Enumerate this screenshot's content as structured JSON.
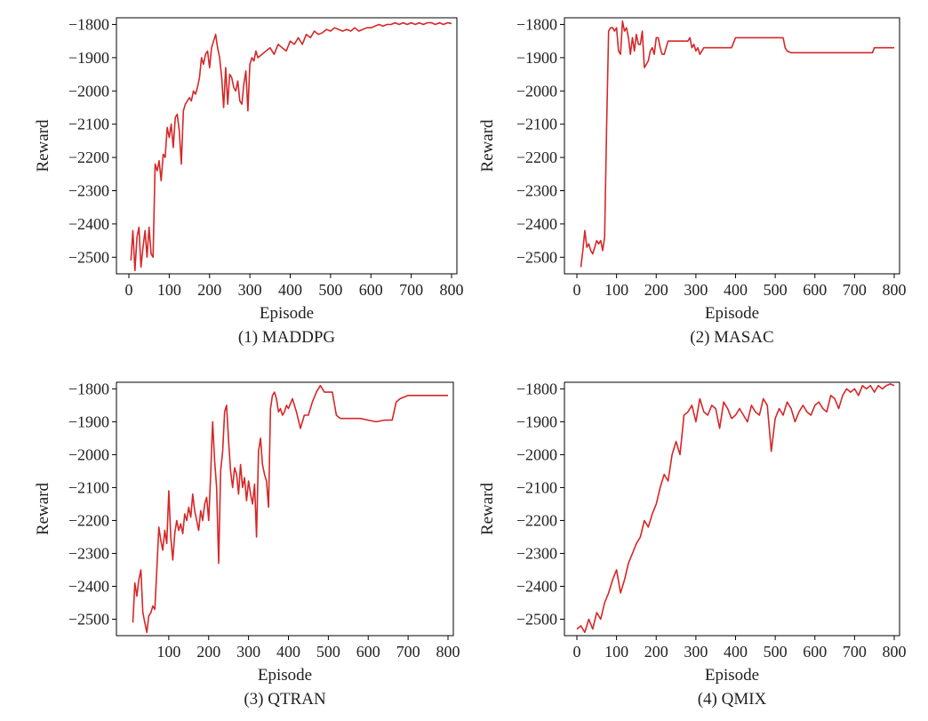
{
  "figure": {
    "line_color": "#d62728"
  },
  "chart_data": [
    {
      "type": "line",
      "caption": "(1) MADDPG",
      "xlabel": "Episode",
      "ylabel": "Reward",
      "xlim": [
        0,
        800
      ],
      "ylim": [
        -2550,
        -1780
      ],
      "xticks": [
        0,
        100,
        200,
        300,
        400,
        500,
        600,
        700,
        800
      ],
      "yticks": [
        -1800,
        -1900,
        -2000,
        -2100,
        -2200,
        -2300,
        -2400,
        -2500
      ],
      "grid": false,
      "series": [
        {
          "x": [
            5,
            10,
            15,
            20,
            25,
            30,
            35,
            40,
            45,
            50,
            55,
            60,
            65,
            70,
            75,
            80,
            85,
            90,
            95,
            100,
            105,
            110,
            115,
            120,
            125,
            130,
            135,
            140,
            145,
            150,
            155,
            160,
            165,
            170,
            175,
            180,
            185,
            190,
            195,
            200,
            205,
            210,
            215,
            220,
            225,
            230,
            235,
            240,
            245,
            250,
            255,
            260,
            265,
            270,
            275,
            280,
            285,
            290,
            295,
            300,
            305,
            310,
            315,
            320,
            330,
            340,
            350,
            360,
            370,
            380,
            390,
            400,
            410,
            420,
            430,
            440,
            450,
            460,
            470,
            480,
            490,
            500,
            510,
            520,
            530,
            540,
            550,
            560,
            570,
            580,
            590,
            600,
            610,
            620,
            630,
            640,
            650,
            660,
            670,
            680,
            690,
            700,
            710,
            720,
            730,
            740,
            750,
            760,
            770,
            780,
            790,
            800
          ],
          "y": [
            -2510,
            -2420,
            -2540,
            -2440,
            -2410,
            -2530,
            -2470,
            -2420,
            -2500,
            -2410,
            -2490,
            -2500,
            -2220,
            -2240,
            -2210,
            -2270,
            -2190,
            -2200,
            -2110,
            -2140,
            -2100,
            -2170,
            -2080,
            -2070,
            -2120,
            -2220,
            -2060,
            -2040,
            -2030,
            -2020,
            -2030,
            -2000,
            -2010,
            -1990,
            -1960,
            -1900,
            -1920,
            -1890,
            -1880,
            -1930,
            -1870,
            -1850,
            -1830,
            -1870,
            -1900,
            -1960,
            -2050,
            -1930,
            -2040,
            -1950,
            -1960,
            -1990,
            -2000,
            -1970,
            -2030,
            -2040,
            -1980,
            -1940,
            -2060,
            -1920,
            -1900,
            -1910,
            -1880,
            -1900,
            -1890,
            -1880,
            -1870,
            -1890,
            -1860,
            -1870,
            -1880,
            -1850,
            -1860,
            -1840,
            -1860,
            -1830,
            -1840,
            -1820,
            -1830,
            -1825,
            -1815,
            -1820,
            -1810,
            -1815,
            -1820,
            -1815,
            -1820,
            -1810,
            -1820,
            -1815,
            -1810,
            -1810,
            -1805,
            -1800,
            -1805,
            -1800,
            -1800,
            -1795,
            -1800,
            -1795,
            -1800,
            -1795,
            -1800,
            -1795,
            -1800,
            -1795,
            -1795,
            -1800,
            -1795,
            -1800,
            -1795,
            -1797
          ]
        }
      ]
    },
    {
      "type": "line",
      "caption": "(2) MASAC",
      "xlabel": "Episode",
      "ylabel": "Reward",
      "xlim": [
        0,
        800
      ],
      "ylim": [
        -2550,
        -1780
      ],
      "xticks": [
        0,
        100,
        200,
        300,
        400,
        500,
        600,
        700,
        800
      ],
      "yticks": [
        -1800,
        -1900,
        -2000,
        -2100,
        -2200,
        -2300,
        -2400,
        -2500
      ],
      "grid": false,
      "series": [
        {
          "x": [
            10,
            15,
            20,
            25,
            30,
            35,
            40,
            45,
            50,
            55,
            60,
            65,
            70,
            75,
            80,
            85,
            90,
            95,
            100,
            105,
            110,
            115,
            120,
            125,
            130,
            135,
            140,
            145,
            150,
            155,
            160,
            165,
            170,
            175,
            180,
            185,
            190,
            195,
            200,
            205,
            210,
            215,
            220,
            230,
            240,
            250,
            260,
            270,
            280,
            285,
            290,
            295,
            300,
            305,
            310,
            320,
            330,
            340,
            350,
            360,
            370,
            380,
            390,
            400,
            410,
            450,
            500,
            520,
            525,
            530,
            540,
            560,
            600,
            650,
            700,
            745,
            750,
            800
          ],
          "y": [
            -2530,
            -2480,
            -2420,
            -2470,
            -2460,
            -2480,
            -2490,
            -2470,
            -2450,
            -2460,
            -2450,
            -2480,
            -2440,
            -2100,
            -1820,
            -1810,
            -1810,
            -1820,
            -1810,
            -1880,
            -1890,
            -1790,
            -1820,
            -1810,
            -1840,
            -1890,
            -1840,
            -1880,
            -1830,
            -1860,
            -1860,
            -1820,
            -1930,
            -1920,
            -1910,
            -1880,
            -1870,
            -1890,
            -1840,
            -1840,
            -1870,
            -1890,
            -1890,
            -1850,
            -1850,
            -1850,
            -1850,
            -1850,
            -1850,
            -1840,
            -1870,
            -1860,
            -1880,
            -1870,
            -1890,
            -1870,
            -1870,
            -1870,
            -1870,
            -1870,
            -1870,
            -1870,
            -1870,
            -1840,
            -1840,
            -1840,
            -1840,
            -1840,
            -1870,
            -1880,
            -1885,
            -1885,
            -1885,
            -1885,
            -1885,
            -1885,
            -1870,
            -1870
          ]
        }
      ]
    },
    {
      "type": "line",
      "caption": "(3) QTRAN",
      "xlabel": "Episode",
      "ylabel": "Reward",
      "xlim": [
        0,
        800
      ],
      "ylim": [
        -2550,
        -1780
      ],
      "xticks": [
        100,
        200,
        300,
        400,
        500,
        600,
        700,
        800
      ],
      "yticks": [
        -1800,
        -1900,
        -2000,
        -2100,
        -2200,
        -2300,
        -2400,
        -2500
      ],
      "grid": false,
      "series": [
        {
          "x": [
            10,
            15,
            20,
            25,
            30,
            35,
            40,
            45,
            50,
            55,
            60,
            65,
            70,
            75,
            80,
            85,
            90,
            95,
            100,
            105,
            110,
            115,
            120,
            125,
            130,
            135,
            140,
            145,
            150,
            155,
            160,
            165,
            170,
            175,
            180,
            185,
            190,
            195,
            200,
            205,
            210,
            215,
            220,
            225,
            230,
            235,
            240,
            245,
            250,
            255,
            260,
            265,
            270,
            275,
            280,
            285,
            290,
            295,
            300,
            305,
            310,
            315,
            320,
            325,
            330,
            335,
            340,
            345,
            350,
            355,
            360,
            365,
            370,
            375,
            380,
            385,
            390,
            395,
            400,
            410,
            420,
            430,
            440,
            450,
            460,
            470,
            480,
            490,
            500,
            510,
            520,
            530,
            540,
            560,
            580,
            600,
            620,
            640,
            660,
            670,
            680,
            700,
            720,
            740,
            760,
            780,
            800
          ],
          "y": [
            -2510,
            -2390,
            -2430,
            -2380,
            -2350,
            -2480,
            -2510,
            -2540,
            -2490,
            -2480,
            -2460,
            -2470,
            -2350,
            -2220,
            -2260,
            -2290,
            -2230,
            -2270,
            -2110,
            -2250,
            -2320,
            -2240,
            -2200,
            -2230,
            -2210,
            -2240,
            -2180,
            -2200,
            -2160,
            -2190,
            -2120,
            -2170,
            -2200,
            -2230,
            -2170,
            -2200,
            -2150,
            -2130,
            -2200,
            -2060,
            -1900,
            -2020,
            -2100,
            -2330,
            -2050,
            -1990,
            -1870,
            -1850,
            -1960,
            -2050,
            -2100,
            -2040,
            -2060,
            -2120,
            -2030,
            -2100,
            -2070,
            -2140,
            -2080,
            -2120,
            -2150,
            -2090,
            -2250,
            -1990,
            -1950,
            -2030,
            -2060,
            -2080,
            -2160,
            -1860,
            -1820,
            -1810,
            -1830,
            -1870,
            -1860,
            -1880,
            -1870,
            -1850,
            -1860,
            -1830,
            -1870,
            -1920,
            -1880,
            -1880,
            -1840,
            -1810,
            -1790,
            -1810,
            -1810,
            -1810,
            -1880,
            -1890,
            -1890,
            -1890,
            -1890,
            -1895,
            -1900,
            -1895,
            -1895,
            -1840,
            -1830,
            -1820,
            -1820,
            -1820,
            -1820,
            -1820,
            -1820
          ]
        }
      ]
    },
    {
      "type": "line",
      "caption": "(4) QMIX",
      "xlabel": "Episode",
      "ylabel": "Reward",
      "xlim": [
        0,
        800
      ],
      "ylim": [
        -2550,
        -1780
      ],
      "xticks": [
        0,
        100,
        200,
        300,
        400,
        500,
        600,
        700,
        800
      ],
      "yticks": [
        -1800,
        -1900,
        -2000,
        -2100,
        -2200,
        -2300,
        -2400,
        -2500
      ],
      "grid": false,
      "series": [
        {
          "x": [
            0,
            10,
            20,
            30,
            40,
            50,
            60,
            70,
            80,
            90,
            100,
            110,
            120,
            130,
            140,
            150,
            160,
            170,
            180,
            190,
            200,
            210,
            220,
            230,
            240,
            250,
            260,
            270,
            280,
            290,
            300,
            310,
            320,
            330,
            340,
            350,
            360,
            370,
            380,
            390,
            400,
            410,
            420,
            430,
            440,
            450,
            460,
            470,
            480,
            490,
            500,
            510,
            520,
            530,
            540,
            550,
            560,
            570,
            580,
            590,
            600,
            610,
            620,
            630,
            640,
            650,
            660,
            670,
            680,
            690,
            700,
            710,
            720,
            730,
            740,
            750,
            760,
            770,
            780,
            790,
            800
          ],
          "y": [
            -2530,
            -2520,
            -2540,
            -2500,
            -2530,
            -2480,
            -2500,
            -2450,
            -2420,
            -2380,
            -2350,
            -2420,
            -2380,
            -2330,
            -2300,
            -2270,
            -2250,
            -2200,
            -2220,
            -2180,
            -2150,
            -2100,
            -2060,
            -2080,
            -2000,
            -1960,
            -2000,
            -1880,
            -1870,
            -1850,
            -1900,
            -1830,
            -1870,
            -1880,
            -1850,
            -1860,
            -1920,
            -1840,
            -1860,
            -1890,
            -1880,
            -1860,
            -1880,
            -1900,
            -1850,
            -1870,
            -1880,
            -1830,
            -1850,
            -1990,
            -1890,
            -1860,
            -1880,
            -1840,
            -1860,
            -1900,
            -1870,
            -1850,
            -1870,
            -1880,
            -1850,
            -1840,
            -1860,
            -1870,
            -1820,
            -1830,
            -1860,
            -1820,
            -1800,
            -1810,
            -1800,
            -1820,
            -1790,
            -1800,
            -1790,
            -1810,
            -1790,
            -1800,
            -1790,
            -1785,
            -1790
          ]
        }
      ]
    }
  ]
}
